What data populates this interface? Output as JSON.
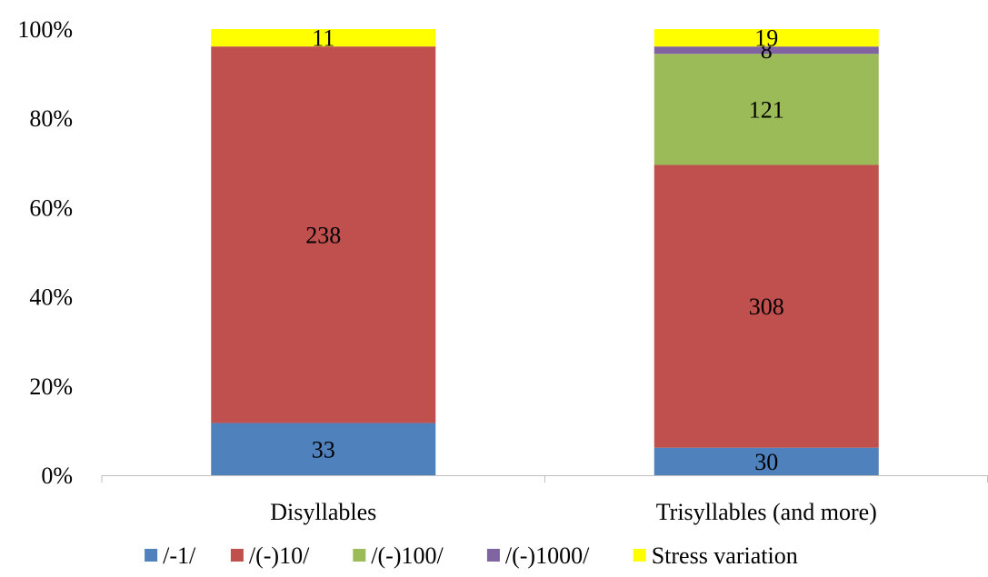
{
  "chart_data": {
    "type": "bar",
    "stacked": "percent",
    "categories": [
      "Disyllables",
      "Trisyllables (and more)"
    ],
    "series": [
      {
        "name": "/-1/",
        "values": [
          33,
          30
        ],
        "color": "#4f81bd"
      },
      {
        "name": "/(-)10/",
        "values": [
          238,
          308
        ],
        "color": "#c0504d"
      },
      {
        "name": "/(-)100/",
        "values": [
          0,
          121
        ],
        "color": "#9bbb59"
      },
      {
        "name": "/(-)1000/",
        "values": [
          0,
          8
        ],
        "color": "#8064a2"
      },
      {
        "name": "Stress variation",
        "values": [
          11,
          19
        ],
        "color": "#ffff00"
      }
    ],
    "ylim": [
      0,
      100
    ],
    "yticks": [
      "0%",
      "20%",
      "40%",
      "60%",
      "80%",
      "100%"
    ],
    "grid": false,
    "legend": "bottom"
  }
}
